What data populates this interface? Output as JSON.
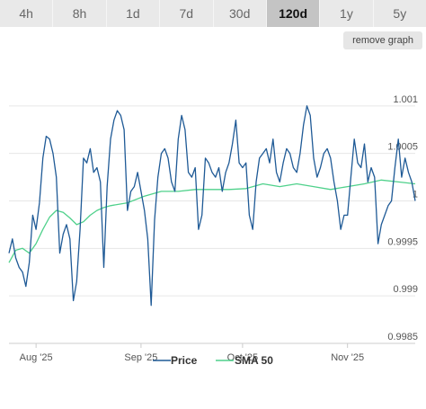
{
  "ranges": [
    "4h",
    "8h",
    "1d",
    "7d",
    "30d",
    "120d",
    "1y",
    "5y"
  ],
  "active_range": "120d",
  "remove_label": "remove graph",
  "colors": {
    "price": "#1f5a96",
    "sma": "#4fd18b",
    "grid": "#e6e6e6"
  },
  "chart_data": {
    "type": "line",
    "x_labels": [
      "Aug '25",
      "Sep '25",
      "Oct '25",
      "Nov '25"
    ],
    "x_label_days": [
      8,
      39,
      69,
      100
    ],
    "x_range": [
      0,
      120
    ],
    "ylim": [
      0.9985,
      1.0015
    ],
    "y_ticks": [
      {
        "value": 1.001,
        "label": "1.001"
      },
      {
        "value": 1.0005,
        "label": "1.0005"
      },
      {
        "value": 1.0,
        "label": "1"
      },
      {
        "value": 0.9995,
        "label": "0.9995"
      },
      {
        "value": 0.999,
        "label": "0.999"
      },
      {
        "value": 0.9985,
        "label": "0.9985"
      }
    ],
    "grid": true,
    "legend_position": "bottom",
    "series": [
      {
        "name": "Price",
        "x": [
          0,
          1,
          2,
          3,
          4,
          5,
          6,
          7,
          8,
          9,
          10,
          11,
          12,
          13,
          14,
          15,
          16,
          17,
          18,
          19,
          20,
          21,
          22,
          23,
          24,
          25,
          26,
          27,
          28,
          29,
          30,
          31,
          32,
          33,
          34,
          35,
          36,
          37,
          38,
          39,
          40,
          41,
          42,
          43,
          44,
          45,
          46,
          47,
          48,
          49,
          50,
          51,
          52,
          53,
          54,
          55,
          56,
          57,
          58,
          59,
          60,
          61,
          62,
          63,
          64,
          65,
          66,
          67,
          68,
          69,
          70,
          71,
          72,
          73,
          74,
          75,
          76,
          77,
          78,
          79,
          80,
          81,
          82,
          83,
          84,
          85,
          86,
          87,
          88,
          89,
          90,
          91,
          92,
          93,
          94,
          95,
          96,
          97,
          98,
          99,
          100,
          101,
          102,
          103,
          104,
          105,
          106,
          107,
          108,
          109,
          110,
          111,
          112,
          113,
          114,
          115,
          116,
          117,
          118,
          119,
          120
        ],
        "values": [
          0.99945,
          0.9996,
          0.9994,
          0.9993,
          0.99925,
          0.9991,
          0.99935,
          0.99985,
          0.9997,
          0.99998,
          1.00045,
          1.00068,
          1.00065,
          1.0005,
          1.00025,
          0.99945,
          0.99965,
          0.99975,
          0.9996,
          0.99895,
          0.99915,
          0.9997,
          1.00045,
          1.0004,
          1.00055,
          1.0003,
          1.00035,
          1.0002,
          0.9993,
          1.00015,
          1.00065,
          1.00085,
          1.00095,
          1.0009,
          1.00075,
          0.9999,
          1.0001,
          1.00015,
          1.0003,
          1.0001,
          0.9999,
          0.9996,
          0.9989,
          0.9998,
          1.00025,
          1.0005,
          1.00055,
          1.00045,
          1.0002,
          1.0001,
          1.00065,
          1.0009,
          1.00075,
          1.0003,
          1.00025,
          1.00035,
          0.9997,
          0.99985,
          1.00045,
          1.0004,
          1.0003,
          1.00025,
          1.00035,
          1.0001,
          1.0003,
          1.0004,
          1.0006,
          1.00085,
          1.0004,
          1.00035,
          1.0004,
          0.99985,
          0.9997,
          1.0002,
          1.00045,
          1.0005,
          1.00055,
          1.0004,
          1.00065,
          1.0003,
          1.0002,
          1.0004,
          1.00055,
          1.0005,
          1.00035,
          1.0003,
          1.0005,
          1.0008,
          1.001,
          1.0009,
          1.00045,
          1.00025,
          1.00035,
          1.0005,
          1.00055,
          1.00045,
          1.0002,
          1.0,
          0.9997,
          0.99985,
          0.99985,
          1.00025,
          1.00065,
          1.0004,
          1.00035,
          1.0006,
          1.0002,
          1.00035,
          1.00025,
          0.99955,
          0.99975,
          0.99985,
          0.99995,
          1.0,
          1.00035,
          1.00065,
          1.00025,
          1.00045,
          1.0003,
          1.0002,
          1.0
        ]
      },
      {
        "name": "SMA 50",
        "x": [
          0,
          2,
          4,
          6,
          8,
          10,
          12,
          14,
          16,
          18,
          20,
          22,
          24,
          26,
          28,
          30,
          35,
          40,
          45,
          50,
          55,
          60,
          65,
          70,
          75,
          80,
          85,
          90,
          95,
          100,
          105,
          110,
          115,
          120
        ],
        "values": [
          0.99935,
          0.99948,
          0.9995,
          0.99945,
          0.99955,
          0.9997,
          0.99983,
          0.9999,
          0.99988,
          0.99982,
          0.99975,
          0.99978,
          0.99985,
          0.9999,
          0.99993,
          0.99995,
          0.99998,
          1.00005,
          1.0001,
          1.0001,
          1.00012,
          1.00012,
          1.00012,
          1.00013,
          1.00018,
          1.00015,
          1.00018,
          1.00015,
          1.00012,
          1.00015,
          1.00018,
          1.00022,
          1.0002,
          1.00018
        ]
      }
    ]
  }
}
